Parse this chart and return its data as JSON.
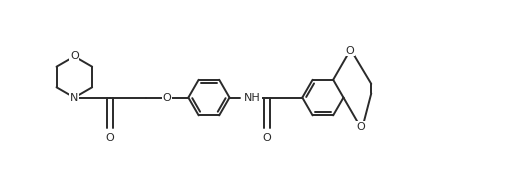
{
  "bg": "#ffffff",
  "lc": "#2a2a2a",
  "lw": 1.4,
  "fs": 8.0,
  "figsize": [
    5.24,
    1.92
  ],
  "dpi": 100,
  "xlim": [
    -0.5,
    10.5
  ],
  "ylim": [
    -0.3,
    3.7
  ]
}
